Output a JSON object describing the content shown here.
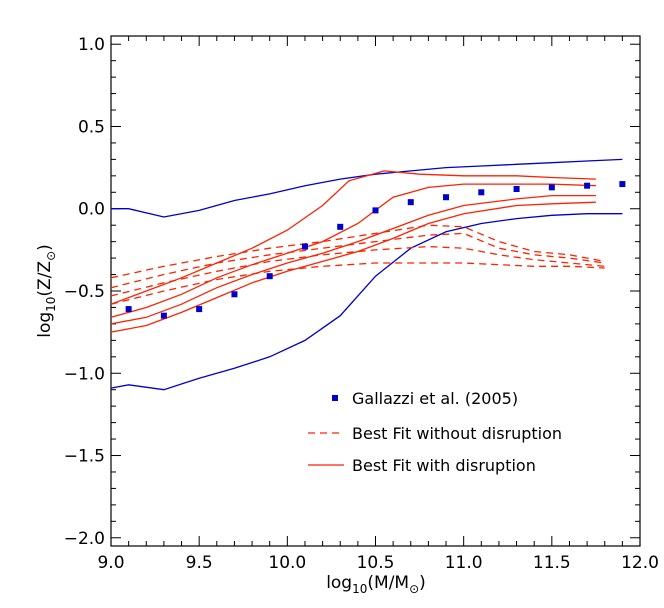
{
  "chart_data": {
    "type": "line",
    "xlabel": {
      "main": "log",
      "sub": "10",
      "rest": "(M/M",
      "sun": "⊙",
      "end": ")"
    },
    "ylabel": {
      "main": "log",
      "sub": "10",
      "rest": "(Z/Z",
      "sun": "⊙",
      "end": ")"
    },
    "xlim": [
      9.0,
      12.0
    ],
    "ylim": [
      -2.05,
      1.05
    ],
    "x_ticks": [
      {
        "value": 9.0,
        "label": "9.0"
      },
      {
        "value": 9.5,
        "label": "9.5"
      },
      {
        "value": 10.0,
        "label": "10.0"
      },
      {
        "value": 10.5,
        "label": "10.5"
      },
      {
        "value": 11.0,
        "label": "11.0"
      },
      {
        "value": 11.5,
        "label": "11.5"
      },
      {
        "value": 12.0,
        "label": "12.0"
      }
    ],
    "y_ticks": [
      {
        "value": 1.0,
        "label": "1.0"
      },
      {
        "value": 0.5,
        "label": "0.5"
      },
      {
        "value": 0.0,
        "label": "0.0"
      },
      {
        "value": -0.5,
        "label": "−0.5"
      },
      {
        "value": -1.0,
        "label": "−1.0"
      },
      {
        "value": -1.5,
        "label": "−1.5"
      },
      {
        "value": -2.0,
        "label": "−2.0"
      }
    ],
    "grid": false,
    "legend_position": "bottom-right",
    "colors": {
      "observed": "#0000cc",
      "model": "#ff2200"
    },
    "legend": [
      {
        "label": "Gallazzi et al. (2005)",
        "style": "square",
        "color": "#0000cc"
      },
      {
        "label": "Best Fit without disruption",
        "style": "dashed",
        "color": "#ff2200"
      },
      {
        "label": "Best Fit with disruption",
        "style": "solid",
        "color": "#ff2200"
      }
    ],
    "points": {
      "x": [
        9.1,
        9.3,
        9.5,
        9.7,
        9.9,
        10.1,
        10.3,
        10.5,
        10.7,
        10.9,
        11.1,
        11.3,
        11.5,
        11.7,
        11.9
      ],
      "y": [
        -0.61,
        -0.65,
        -0.61,
        -0.52,
        -0.41,
        -0.23,
        -0.11,
        -0.01,
        0.04,
        0.07,
        0.1,
        0.12,
        0.13,
        0.14,
        0.15
      ]
    },
    "blue_lines": [
      {
        "x": [
          9.0,
          9.1,
          9.3,
          9.5,
          9.7,
          9.9,
          10.1,
          10.3,
          10.5,
          10.7,
          10.9,
          11.1,
          11.3,
          11.5,
          11.7,
          11.9
        ],
        "y": [
          0.0,
          0.0,
          -0.05,
          -0.01,
          0.05,
          0.09,
          0.14,
          0.18,
          0.21,
          0.23,
          0.25,
          0.26,
          0.27,
          0.28,
          0.29,
          0.3
        ]
      },
      {
        "x": [
          9.0,
          9.1,
          9.3,
          9.5,
          9.7,
          9.9,
          10.1,
          10.3,
          10.5,
          10.7,
          10.9,
          11.1,
          11.3,
          11.5,
          11.7,
          11.9
        ],
        "y": [
          -1.09,
          -1.07,
          -1.1,
          -1.03,
          -0.97,
          -0.9,
          -0.8,
          -0.65,
          -0.41,
          -0.24,
          -0.14,
          -0.09,
          -0.06,
          -0.04,
          -0.03,
          -0.03
        ]
      }
    ],
    "red_solid": [
      {
        "x": [
          9.0,
          9.2,
          9.4,
          9.6,
          9.8,
          10.0,
          10.2,
          10.35,
          10.55,
          10.75,
          11.0,
          11.3,
          11.5,
          11.75
        ],
        "y": [
          -0.58,
          -0.5,
          -0.42,
          -0.33,
          -0.24,
          -0.13,
          0.02,
          0.17,
          0.23,
          0.21,
          0.2,
          0.2,
          0.19,
          0.18
        ]
      },
      {
        "x": [
          9.0,
          9.2,
          9.4,
          9.6,
          9.8,
          10.0,
          10.2,
          10.4,
          10.6,
          10.8,
          11.0,
          11.3,
          11.5,
          11.75
        ],
        "y": [
          -0.66,
          -0.6,
          -0.52,
          -0.42,
          -0.34,
          -0.27,
          -0.2,
          -0.09,
          0.07,
          0.13,
          0.15,
          0.15,
          0.15,
          0.14
        ]
      },
      {
        "x": [
          9.0,
          9.2,
          9.4,
          9.6,
          9.8,
          10.0,
          10.2,
          10.4,
          10.6,
          10.8,
          11.0,
          11.3,
          11.5,
          11.75
        ],
        "y": [
          -0.7,
          -0.66,
          -0.58,
          -0.48,
          -0.4,
          -0.33,
          -0.27,
          -0.2,
          -0.12,
          -0.04,
          0.02,
          0.06,
          0.08,
          0.08
        ]
      },
      {
        "x": [
          9.0,
          9.2,
          9.4,
          9.6,
          9.8,
          10.0,
          10.2,
          10.4,
          10.6,
          10.8,
          11.0,
          11.3,
          11.5,
          11.75
        ],
        "y": [
          -0.75,
          -0.71,
          -0.63,
          -0.54,
          -0.45,
          -0.38,
          -0.32,
          -0.26,
          -0.18,
          -0.09,
          -0.03,
          0.02,
          0.03,
          0.04
        ]
      }
    ],
    "red_dashed": [
      {
        "x": [
          9.0,
          9.3,
          9.6,
          9.9,
          10.2,
          10.5,
          10.8,
          11.0,
          11.2,
          11.4,
          11.6,
          11.8
        ],
        "y": [
          -0.42,
          -0.35,
          -0.29,
          -0.24,
          -0.2,
          -0.15,
          -0.1,
          -0.11,
          -0.2,
          -0.26,
          -0.28,
          -0.32
        ]
      },
      {
        "x": [
          9.0,
          9.3,
          9.6,
          9.9,
          10.2,
          10.5,
          10.8,
          11.0,
          11.2,
          11.4,
          11.6,
          11.8
        ],
        "y": [
          -0.48,
          -0.4,
          -0.33,
          -0.28,
          -0.24,
          -0.2,
          -0.16,
          -0.15,
          -0.24,
          -0.28,
          -0.3,
          -0.33
        ]
      },
      {
        "x": [
          9.0,
          9.3,
          9.6,
          9.9,
          10.2,
          10.5,
          10.8,
          11.0,
          11.2,
          11.4,
          11.6,
          11.8
        ],
        "y": [
          -0.53,
          -0.45,
          -0.38,
          -0.32,
          -0.28,
          -0.25,
          -0.23,
          -0.24,
          -0.28,
          -0.31,
          -0.33,
          -0.35
        ]
      },
      {
        "x": [
          9.0,
          9.3,
          9.6,
          9.9,
          10.2,
          10.5,
          10.8,
          11.0,
          11.2,
          11.4,
          11.6,
          11.8
        ],
        "y": [
          -0.58,
          -0.5,
          -0.43,
          -0.38,
          -0.35,
          -0.33,
          -0.33,
          -0.33,
          -0.34,
          -0.35,
          -0.35,
          -0.36
        ]
      }
    ]
  }
}
